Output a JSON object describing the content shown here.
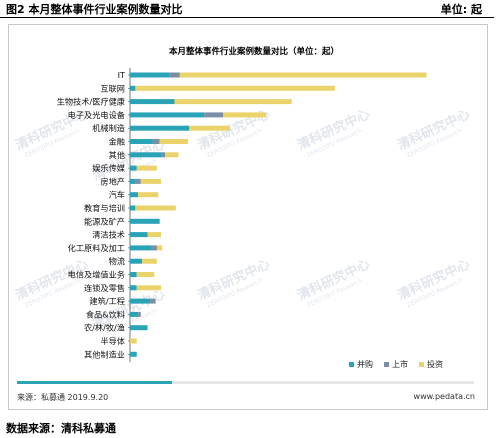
{
  "header": {
    "title": "图2 本月整体事件行业案例数量对比",
    "unit": "单位:    起"
  },
  "source": "来源：私募通 2019.9.20",
  "site": "www.pedata.cn",
  "footer": "数据来源：清科私募通",
  "watermark": {
    "brand": "清科研究中心",
    "sub": "ZERO2IPO Research"
  },
  "colors": {
    "merger": "#2aa3b7",
    "ipo": "#7a8ea6",
    "invest": "#ebd36b"
  },
  "chart_data": {
    "type": "bar",
    "orientation": "horizontal",
    "stacked": true,
    "title": "本月整体事件行业案例数量对比（单位：起）",
    "categories": [
      "IT",
      "互联网",
      "生物技术/医疗健康",
      "电子及光电设备",
      "机械制造",
      "金融",
      "其他",
      "娱乐传媒",
      "房地产",
      "汽车",
      "教育与培训",
      "能源及矿产",
      "清洁技术",
      "化工原料及加工",
      "物流",
      "电信及增值业务",
      "连锁及零售",
      "建筑/工程",
      "食品&饮料",
      "农/林/牧/渔",
      "半导体",
      "其他制造业"
    ],
    "series": [
      {
        "name": "并购",
        "color": "#2aa3b7",
        "values": [
          29,
          4,
          33,
          55,
          44,
          17,
          23,
          5,
          4,
          6,
          4,
          22,
          13,
          16,
          9,
          5,
          5,
          15,
          6,
          13,
          0,
          5
        ]
      },
      {
        "name": "上市",
        "color": "#7a8ea6",
        "values": [
          8,
          0,
          0,
          14,
          0,
          5,
          3,
          0,
          4,
          0,
          0,
          0,
          0,
          4,
          0,
          0,
          0,
          4,
          2,
          0,
          0,
          0
        ]
      },
      {
        "name": "投资",
        "color": "#ebd36b",
        "values": [
          183,
          148,
          87,
          32,
          30,
          21,
          10,
          15,
          15,
          15,
          30,
          0,
          10,
          4,
          11,
          13,
          18,
          0,
          0,
          0,
          5,
          0
        ]
      }
    ],
    "xlim": [
      0,
      230
    ],
    "legend": "bottom-right",
    "grid": false
  }
}
